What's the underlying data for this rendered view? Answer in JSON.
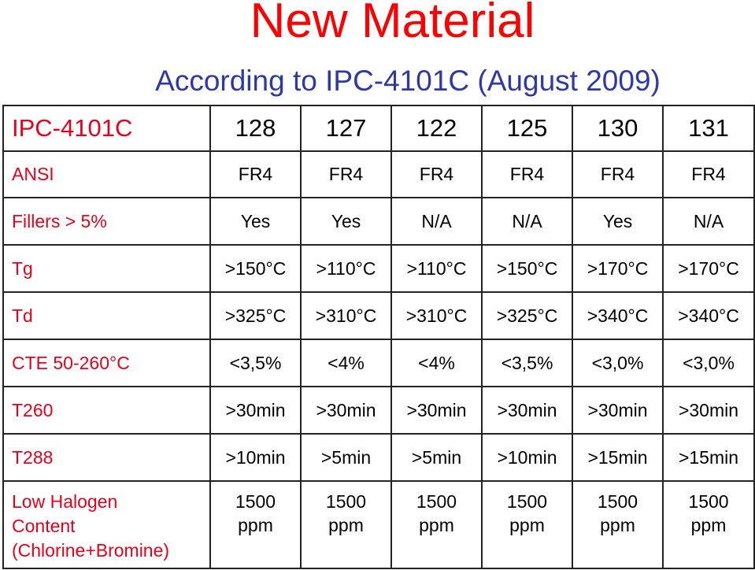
{
  "title": "New Material",
  "subtitle": "According to IPC-4101C (August 2009)",
  "table": {
    "header": {
      "label": "IPC-4101C",
      "values": [
        "128",
        "127",
        "122",
        "125",
        "130",
        "131"
      ]
    },
    "rows": [
      {
        "label": "ANSI",
        "values": [
          "FR4",
          "FR4",
          "FR4",
          "FR4",
          "FR4",
          "FR4"
        ]
      },
      {
        "label": "Fillers > 5%",
        "values": [
          "Yes",
          "Yes",
          "N/A",
          "N/A",
          "Yes",
          "N/A"
        ]
      },
      {
        "label": "Tg",
        "values": [
          ">150°C",
          ">110°C",
          ">110°C",
          ">150°C",
          ">170°C",
          ">170°C"
        ]
      },
      {
        "label": "Td",
        "values": [
          ">325°C",
          ">310°C",
          ">310°C",
          ">325°C",
          ">340°C",
          ">340°C"
        ]
      },
      {
        "label": "CTE 50-260°C",
        "values": [
          "<3,5%",
          "<4%",
          "<4%",
          "<3,5%",
          "<3,0%",
          "<3,0%"
        ]
      },
      {
        "label": "T260",
        "values": [
          ">30min",
          ">30min",
          ">30min",
          ">30min",
          ">30min",
          ">30min"
        ]
      },
      {
        "label": "T288",
        "values": [
          ">10min",
          ">5min",
          ">5min",
          ">10min",
          ">15min",
          ">15min"
        ]
      }
    ],
    "last_row": {
      "label_lines": [
        "Low Halogen",
        "Content",
        "(Chlorine+Bromine)"
      ],
      "values": [
        [
          "1500",
          "ppm"
        ],
        [
          "1500",
          "ppm"
        ],
        [
          "1500",
          "ppm"
        ],
        [
          "1500",
          "ppm"
        ],
        [
          "1500",
          "ppm"
        ],
        [
          "1500",
          "ppm"
        ]
      ]
    }
  },
  "colors": {
    "title": "#ff0000",
    "subtitle": "#2f38a8",
    "row_label": "#e8001c",
    "border": "#222222"
  }
}
